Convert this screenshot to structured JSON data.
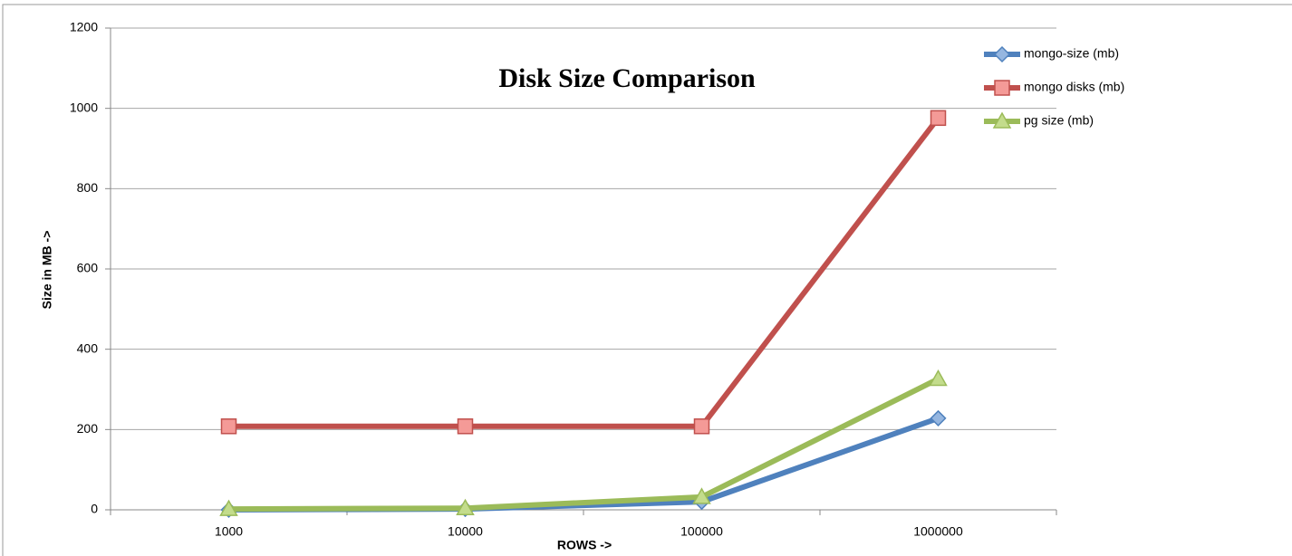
{
  "chart_data": {
    "type": "line",
    "title": "Disk Size Comparison",
    "x_label": "ROWS ->",
    "y_label": "Size in MB ->",
    "categories": [
      "1000",
      "10000",
      "100000",
      "1000000"
    ],
    "series": [
      {
        "name": "mongo-size (mb)",
        "color": "#4f81bd",
        "marker": "diamond",
        "values": [
          0,
          2,
          20,
          228
        ]
      },
      {
        "name": "mongo disks (mb)",
        "color": "#c0504d",
        "marker": "square",
        "values": [
          208,
          208,
          208,
          976
        ]
      },
      {
        "name": "pg size (mb)",
        "color": "#9bbb59",
        "marker": "triangle",
        "values": [
          2,
          4,
          32,
          326
        ]
      }
    ],
    "ylim": [
      0,
      1200
    ],
    "yticks": [
      0,
      200,
      400,
      600,
      800,
      1000,
      1200
    ],
    "grid": true,
    "legend": "top-right"
  }
}
